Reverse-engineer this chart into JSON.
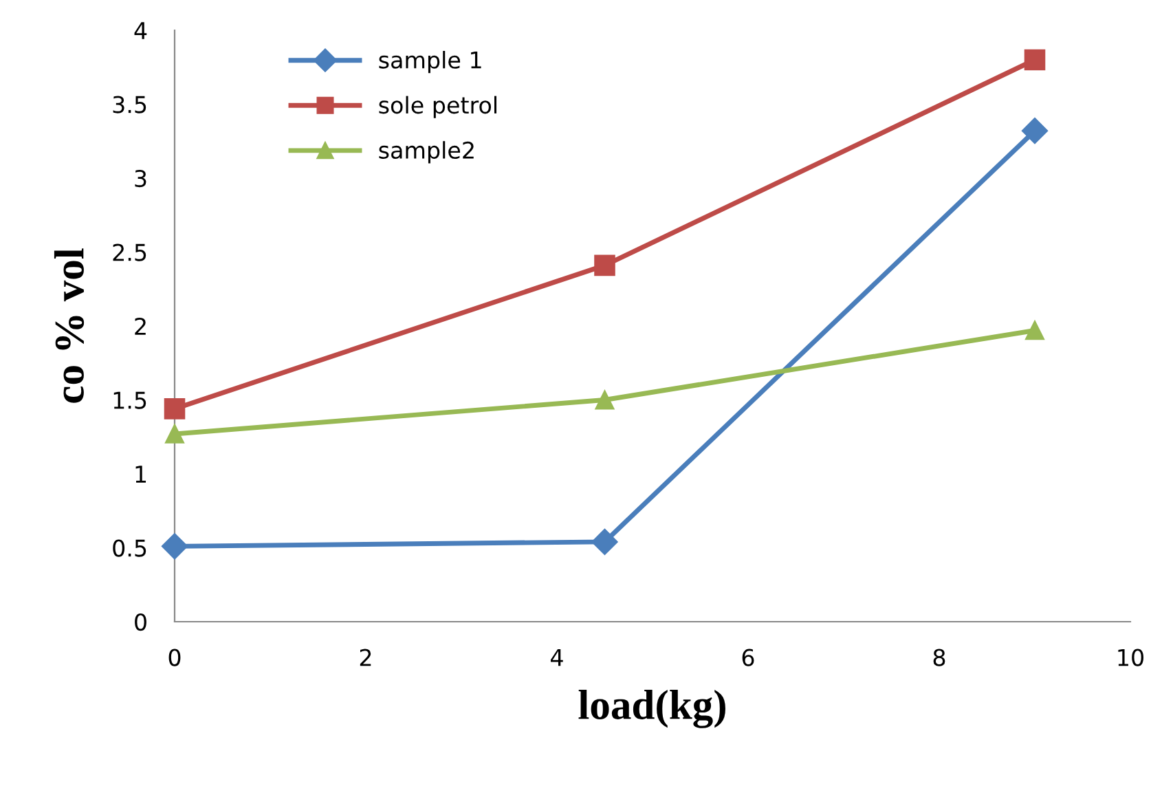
{
  "chart_data": {
    "type": "line",
    "xlabel": "load(kg)",
    "ylabel": "co % vol",
    "x": [
      0,
      4.5,
      9
    ],
    "series": [
      {
        "name": "sample 1",
        "color": "#4a7ebb",
        "marker": "diamond",
        "values": [
          0.51,
          0.54,
          3.32
        ]
      },
      {
        "name": "sole petrol",
        "color": "#be4b48",
        "marker": "square",
        "values": [
          1.44,
          2.41,
          3.8
        ]
      },
      {
        "name": "sample2",
        "color": "#98b954",
        "marker": "triangle",
        "values": [
          1.27,
          1.5,
          1.97
        ]
      }
    ],
    "xlim": [
      0,
      10
    ],
    "xticks": [
      0,
      2,
      4,
      6,
      8,
      10
    ],
    "ylim": [
      0,
      4
    ],
    "yticks": [
      0,
      0.5,
      1,
      1.5,
      2,
      2.5,
      3,
      3.5,
      4
    ],
    "grid": false,
    "legend": "top left",
    "line_style": "solid"
  }
}
